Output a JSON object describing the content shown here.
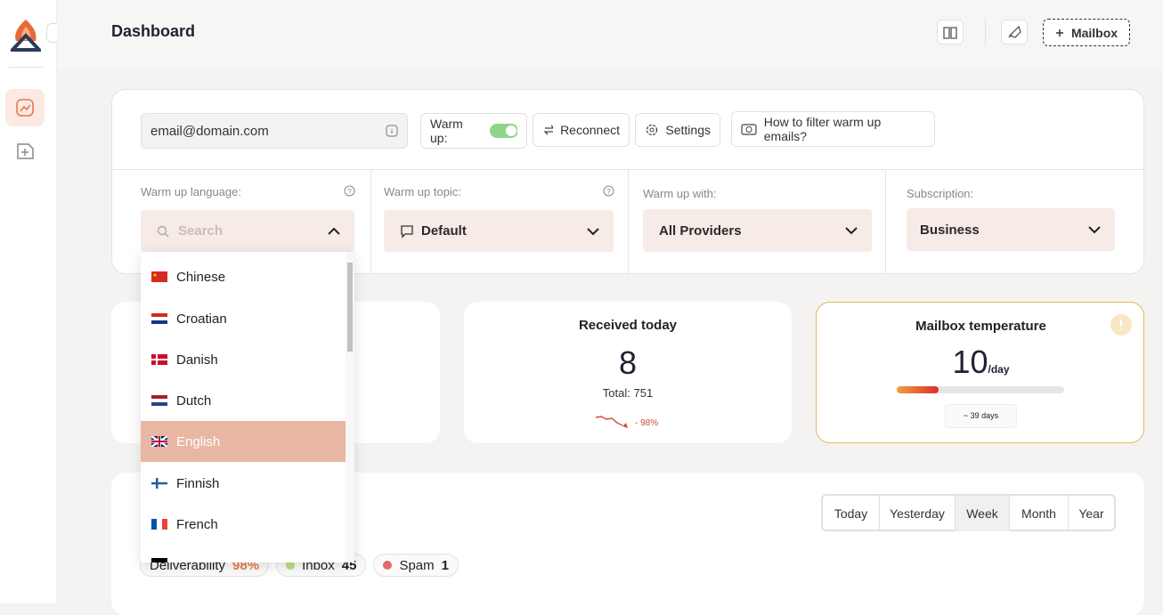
{
  "header": {
    "title": "Dashboard",
    "mailbox_button": "Mailbox"
  },
  "toolbar": {
    "email": "email@domain.com",
    "warm_up": "Warm up:",
    "reconnect": "Reconnect",
    "settings": "Settings",
    "filter_help": "How to filter warm up emails?"
  },
  "filters": {
    "language_label": "Warm up language:",
    "search_placeholder": "Search",
    "topic_label": "Warm up topic:",
    "topic_value": "Default",
    "with_label": "Warm up with:",
    "with_value": "All Providers",
    "subscription_label": "Subscription:",
    "subscription_value": "Business"
  },
  "language_options": [
    "Chinese",
    "Croatian",
    "Danish",
    "Dutch",
    "English",
    "Finnish",
    "French"
  ],
  "received": {
    "title": "Received today",
    "value": 8,
    "total_label": "Total:",
    "total": 751,
    "trend": "- 98%"
  },
  "temperature": {
    "title": "Mailbox temperature",
    "value": 10,
    "unit": "/day",
    "days": "~ 39 days"
  },
  "periods": [
    "Today",
    "Yesterday",
    "Week",
    "Month",
    "Year"
  ],
  "legend": [
    {
      "name": "Deliverability",
      "value": "98%"
    },
    {
      "name": "Inbox",
      "value": "45"
    },
    {
      "name": "Spam",
      "value": "1"
    }
  ]
}
